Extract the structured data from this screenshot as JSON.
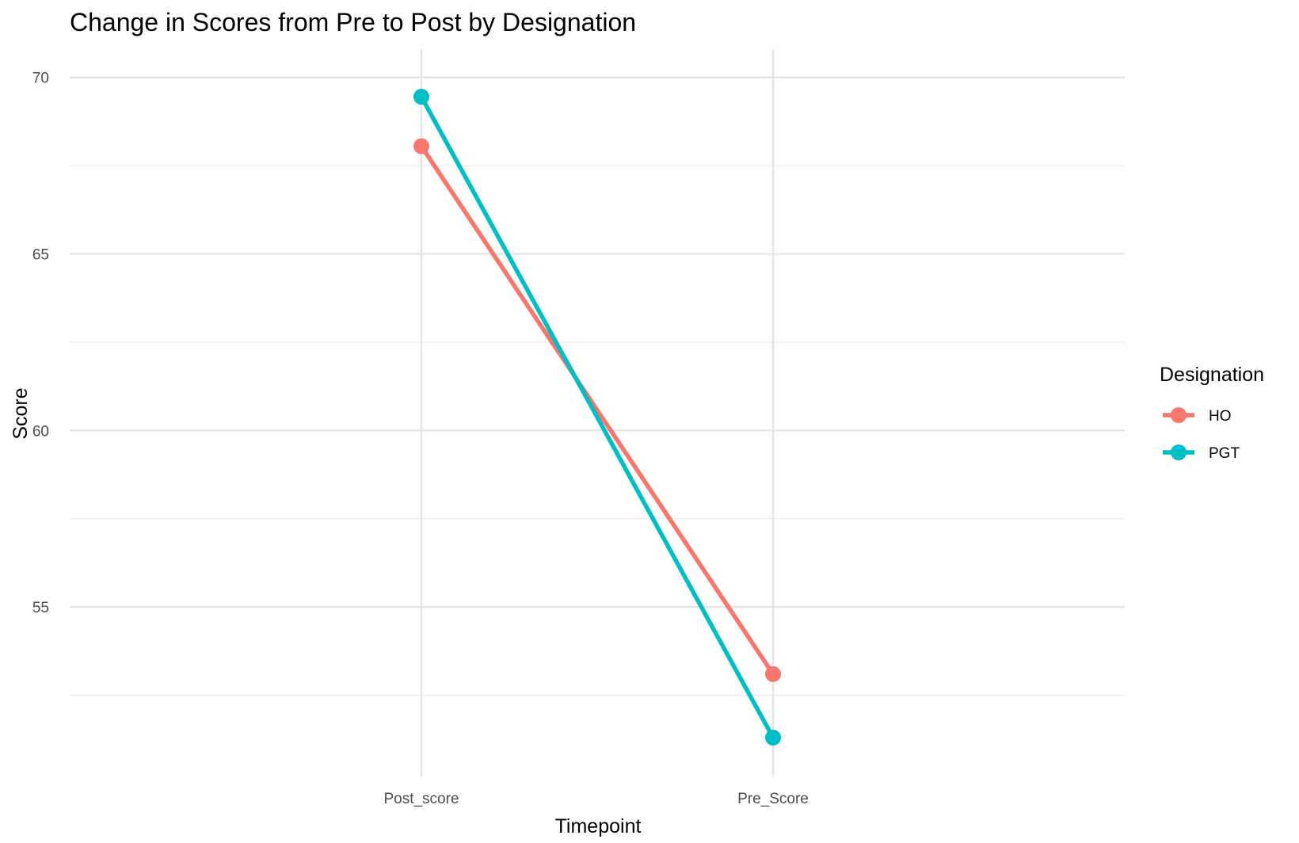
{
  "chart_data": {
    "type": "line",
    "title": "Change in Scores from Pre to Post by Designation",
    "xlabel": "Timepoint",
    "ylabel": "Score",
    "categories": [
      "Post_score",
      "Pre_Score"
    ],
    "ylim": [
      50.2,
      70.8
    ],
    "yticks": [
      55,
      60,
      65,
      70
    ],
    "grid": true,
    "legend": {
      "title": "Designation",
      "position": "right"
    },
    "series": [
      {
        "name": "HO",
        "color": "#F8766D",
        "values": [
          68.05,
          53.1
        ]
      },
      {
        "name": "PGT",
        "color": "#00BFC4",
        "values": [
          69.45,
          51.3
        ]
      }
    ]
  }
}
